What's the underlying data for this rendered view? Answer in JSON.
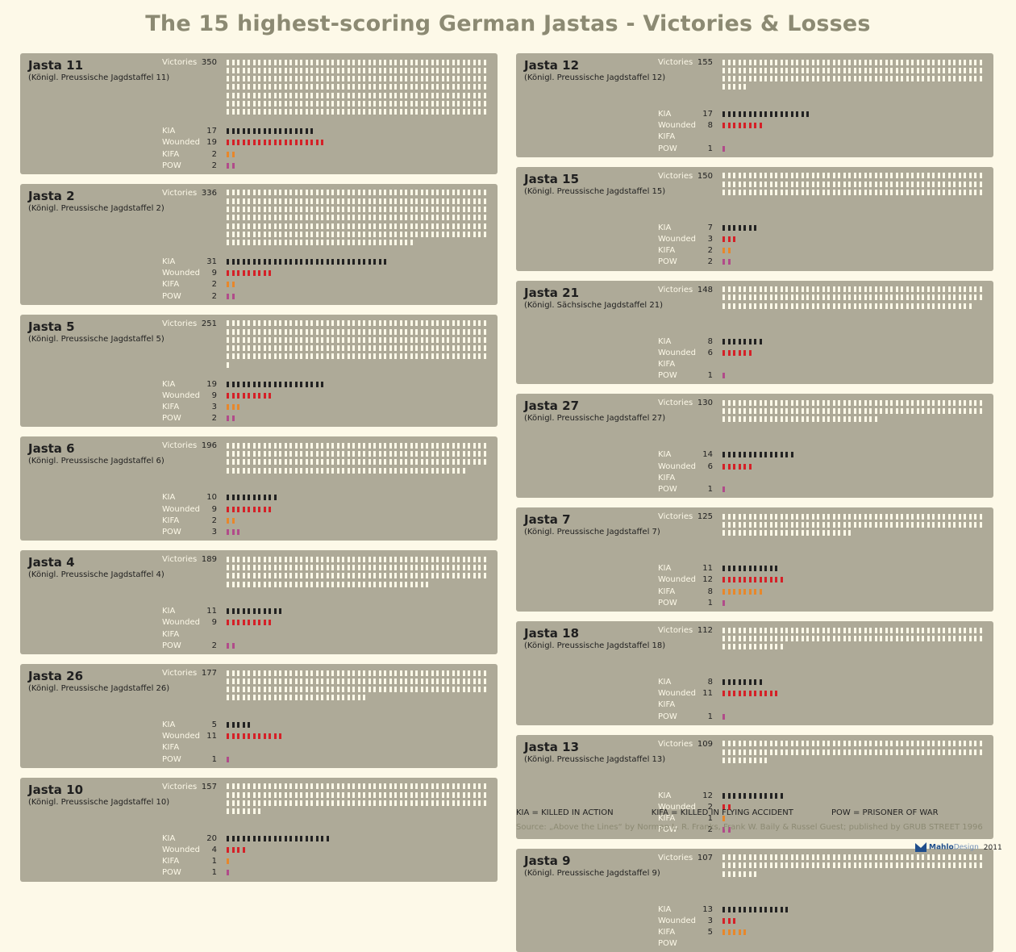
{
  "title": "The 15 highest-scoring German Jastas - Victories & Losses",
  "row_labels": [
    "Victories",
    "KIA",
    "Wounded",
    "KIFA",
    "POW"
  ],
  "colors": {
    "background": "#fdf9e8",
    "panel": "#aeaa98",
    "victories": "#fdf9e8",
    "kia": "#222222",
    "wounded": "#d52027",
    "kifa": "#e8872a",
    "pow": "#b14b8a"
  },
  "legend": [
    "KIA = KILLED IN ACTION",
    "KIFA = KILLED IN FLYING ACCIDENT",
    "POW = PRISONER OF WAR"
  ],
  "source": "Source: „Above the Lines“ by Norman L. R. Franks, Frank W. Baily & Russel Guest; published by GRUB STREET 1996",
  "brand": {
    "mahlo": "Mahlo",
    "design": "Design",
    "year": "2011"
  },
  "chart_data": {
    "type": "table",
    "series_keys": [
      "victories",
      "kia",
      "wounded",
      "kifa",
      "pow"
    ],
    "columns": [
      [
        {
          "name": "Jasta 11",
          "full": "(Königl. Preussische Jagdstaffel 11)",
          "victories": 350,
          "kia": 17,
          "wounded": 19,
          "kifa": 2,
          "pow": 2
        },
        {
          "name": "Jasta 2",
          "full": "(Königl. Preussische Jagdstaffel 2)",
          "victories": 336,
          "kia": 31,
          "wounded": 9,
          "kifa": 2,
          "pow": 2
        },
        {
          "name": "Jasta 5",
          "full": "(Königl. Preussische Jagdstaffel 5)",
          "victories": 251,
          "kia": 19,
          "wounded": 9,
          "kifa": 3,
          "pow": 2
        },
        {
          "name": "Jasta 6",
          "full": "(Königl. Preussische Jagdstaffel 6)",
          "victories": 196,
          "kia": 10,
          "wounded": 9,
          "kifa": 2,
          "pow": 3
        },
        {
          "name": "Jasta 4",
          "full": "(Königl. Preussische Jagdstaffel 4)",
          "victories": 189,
          "kia": 11,
          "wounded": 9,
          "kifa": null,
          "pow": 2
        },
        {
          "name": "Jasta 26",
          "full": "(Königl. Preussische Jagdstaffel 26)",
          "victories": 177,
          "kia": 5,
          "wounded": 11,
          "kifa": null,
          "pow": 1
        },
        {
          "name": "Jasta 10",
          "full": "(Königl. Preussische Jagdstaffel 10)",
          "victories": 157,
          "kia": 20,
          "wounded": 4,
          "kifa": 1,
          "pow": 1
        }
      ],
      [
        {
          "name": "Jasta 12",
          "full": "(Königl. Preussische Jagdstaffel 12)",
          "victories": 155,
          "kia": 17,
          "wounded": 8,
          "kifa": null,
          "pow": 1
        },
        {
          "name": "Jasta 15",
          "full": "(Königl. Preussische Jagdstaffel 15)",
          "victories": 150,
          "kia": 7,
          "wounded": 3,
          "kifa": 2,
          "pow": 2
        },
        {
          "name": "Jasta 21",
          "full": "(Königl. Sächsische Jagdstaffel 21)",
          "victories": 148,
          "kia": 8,
          "wounded": 6,
          "kifa": null,
          "pow": 1
        },
        {
          "name": "Jasta 27",
          "full": "(Königl. Preussische Jagdstaffel 27)",
          "victories": 130,
          "kia": 14,
          "wounded": 6,
          "kifa": null,
          "pow": 1
        },
        {
          "name": "Jasta 7",
          "full": "(Königl. Preussische Jagdstaffel 7)",
          "victories": 125,
          "kia": 11,
          "wounded": 12,
          "kifa": 8,
          "pow": 1
        },
        {
          "name": "Jasta 18",
          "full": "(Königl. Preussische Jagdstaffel 18)",
          "victories": 112,
          "kia": 8,
          "wounded": 11,
          "kifa": null,
          "pow": 1
        },
        {
          "name": "Jasta 13",
          "full": "(Königl. Preussische Jagdstaffel 13)",
          "victories": 109,
          "kia": 12,
          "wounded": 2,
          "kifa": 1,
          "pow": 2
        },
        {
          "name": "Jasta 9",
          "full": "(Königl. Preussische Jagdstaffel 9)",
          "victories": 107,
          "kia": 13,
          "wounded": 3,
          "kifa": 5,
          "pow": null
        }
      ]
    ]
  }
}
